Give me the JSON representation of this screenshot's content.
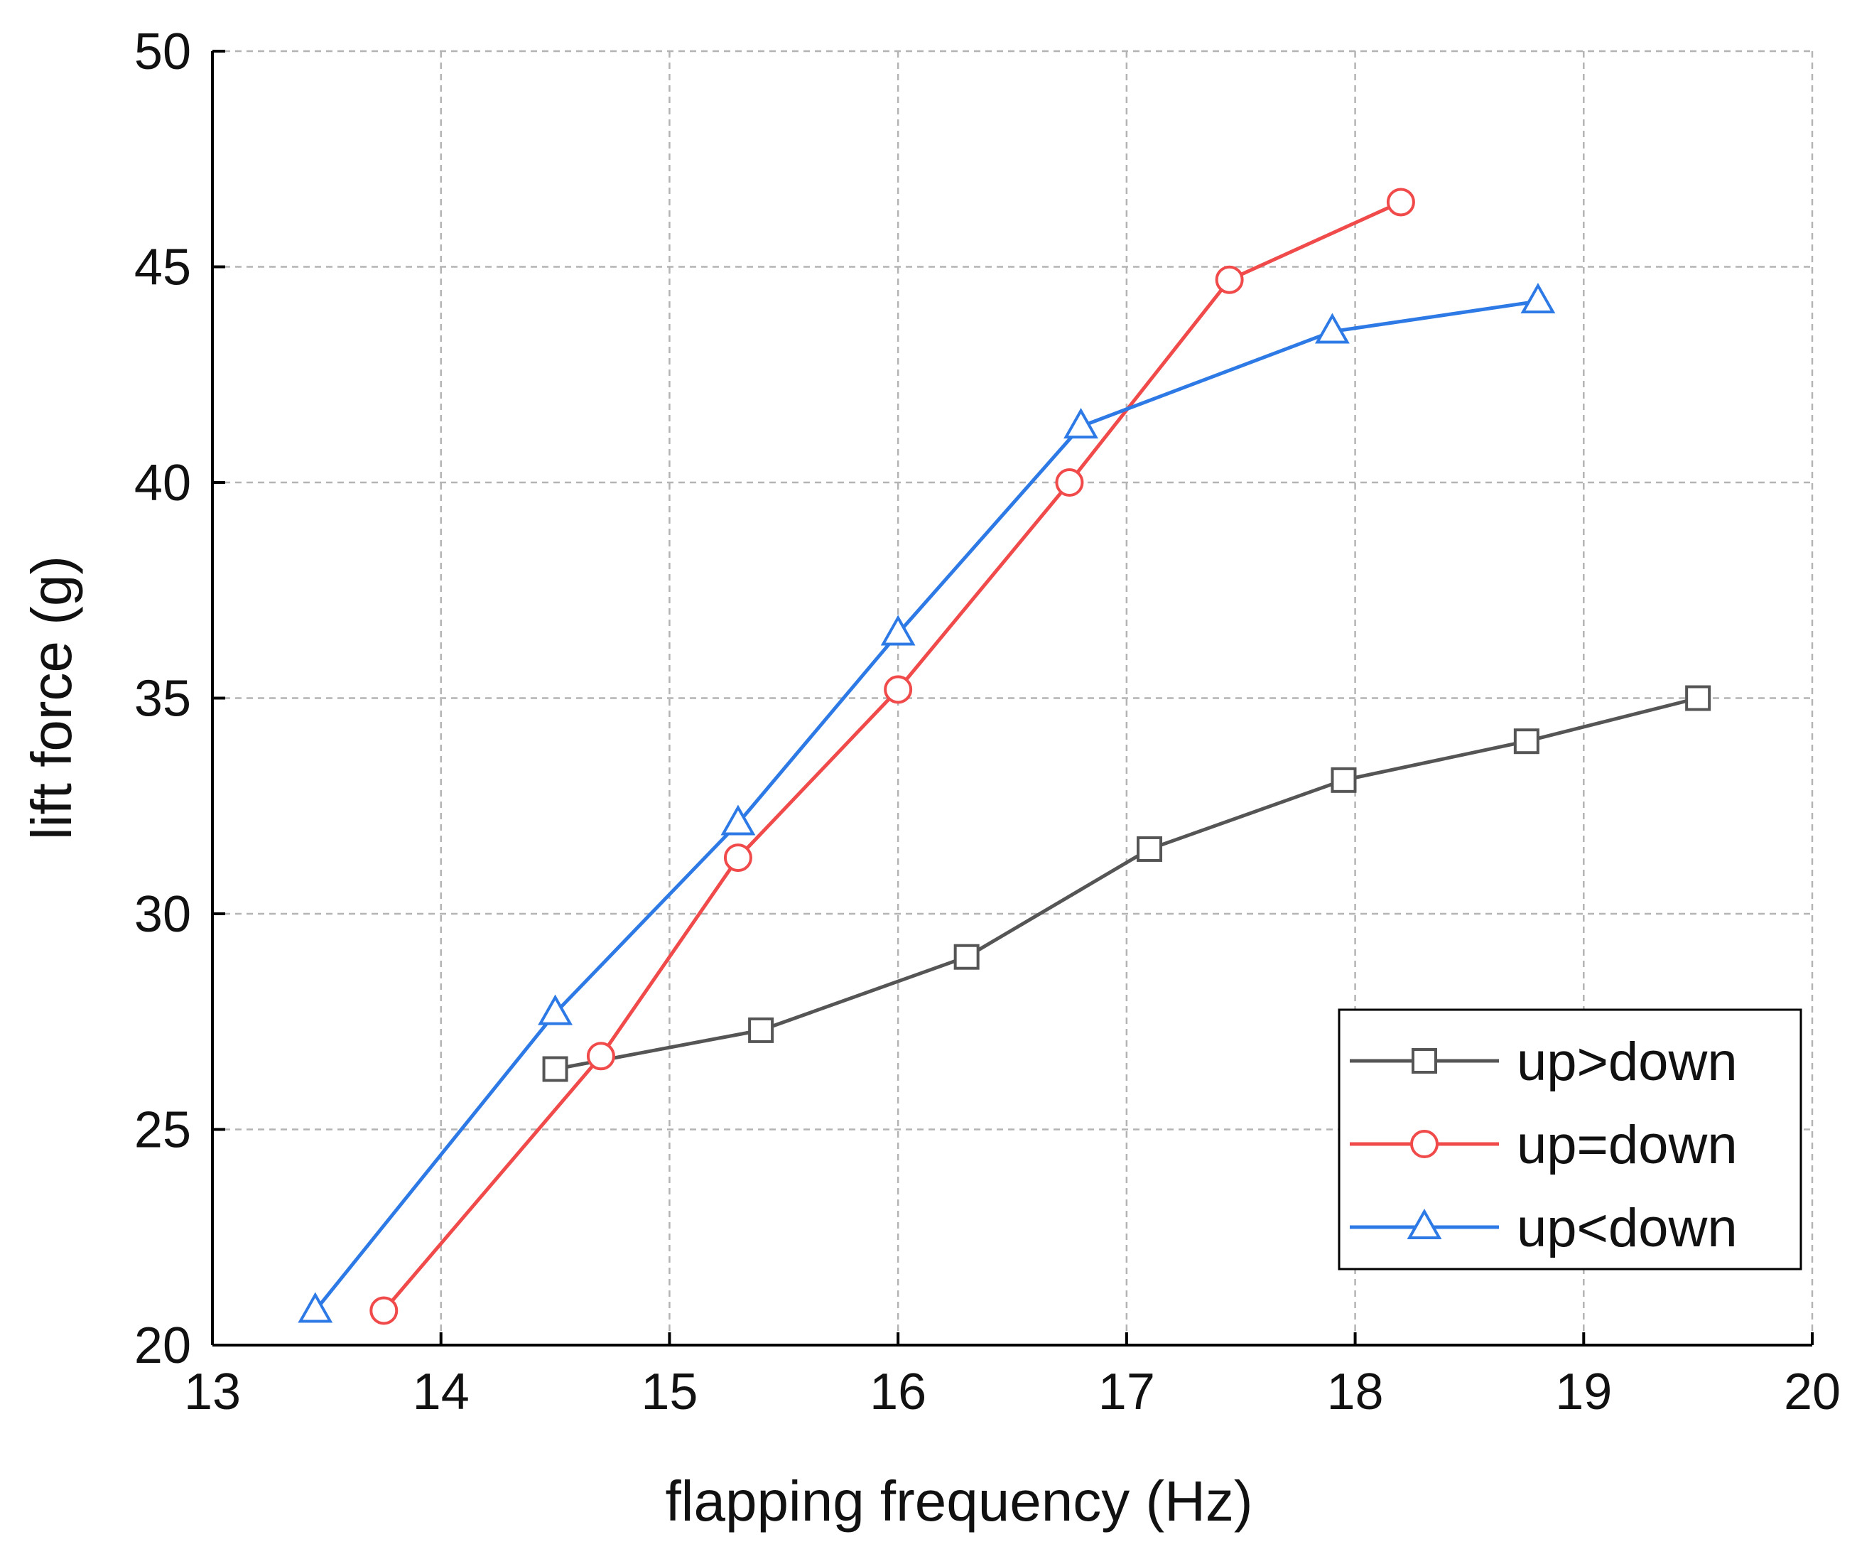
{
  "chart_data": {
    "type": "line",
    "title": "",
    "xlabel": "flapping frequency (Hz)",
    "ylabel": "lift force (g)",
    "xlim": [
      13,
      20
    ],
    "ylim": [
      20,
      50
    ],
    "x_ticks": [
      "13",
      "14",
      "15",
      "16",
      "17",
      "18",
      "19",
      "20"
    ],
    "y_ticks": [
      "20",
      "25",
      "30",
      "35",
      "40",
      "45",
      "50"
    ],
    "grid": true,
    "legend_position": "bottom-right",
    "series": [
      {
        "name": "up>down",
        "color": "#555555",
        "marker": "square",
        "x": [
          14.5,
          15.4,
          16.3,
          17.1,
          17.95,
          18.75,
          19.5
        ],
        "y": [
          26.4,
          27.3,
          29.0,
          31.5,
          33.1,
          34.0,
          35.0
        ]
      },
      {
        "name": "up=down",
        "color": "#f04a4a",
        "marker": "circle",
        "x": [
          13.75,
          14.7,
          15.3,
          16.0,
          16.75,
          17.45,
          18.2
        ],
        "y": [
          20.8,
          26.7,
          31.3,
          35.2,
          40.0,
          44.7,
          46.5
        ]
      },
      {
        "name": "up<down",
        "color": "#2d7ae6",
        "marker": "triangle",
        "x": [
          13.45,
          14.5,
          15.3,
          16.0,
          16.8,
          17.9,
          18.8
        ],
        "y": [
          20.8,
          27.7,
          32.1,
          36.5,
          41.3,
          43.5,
          44.2
        ]
      }
    ]
  }
}
